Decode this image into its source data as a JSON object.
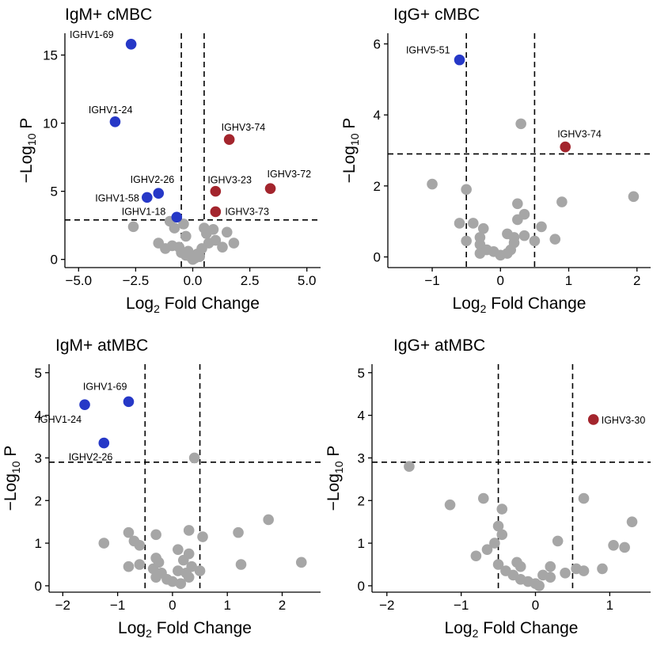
{
  "colors": {
    "up": "#a3252d",
    "down": "#2638c7",
    "ns": "#a6a6a6"
  },
  "chart_data": [
    {
      "type": "scatter",
      "title": "IgM+ cMBC",
      "xlabel": "Log2 Fold Change",
      "ylabel": "−Log10 P",
      "xlim": [
        -5.6,
        5.6
      ],
      "ylim": [
        -0.6,
        16.6
      ],
      "xticks": [
        -5,
        -2.5,
        0,
        2.5,
        5
      ],
      "xtick_labels": [
        "−5.0",
        "−2.5",
        "0.0",
        "2.5",
        "5.0"
      ],
      "yticks": [
        0,
        5,
        10,
        15
      ],
      "ytick_labels": [
        "0",
        "5",
        "10",
        "15"
      ],
      "hline": 2.9,
      "vlines": [
        -0.5,
        0.5
      ],
      "points": [
        {
          "x": -2.7,
          "y": 15.8,
          "cls": "down"
        },
        {
          "x": -3.4,
          "y": 10.1,
          "cls": "down"
        },
        {
          "x": -1.5,
          "y": 4.85,
          "cls": "down"
        },
        {
          "x": -2.0,
          "y": 4.55,
          "cls": "down"
        },
        {
          "x": -0.7,
          "y": 3.1,
          "cls": "down"
        },
        {
          "x": 1.6,
          "y": 8.8,
          "cls": "up"
        },
        {
          "x": 1.0,
          "y": 5.0,
          "cls": "up"
        },
        {
          "x": 3.4,
          "y": 5.2,
          "cls": "up"
        },
        {
          "x": 1.0,
          "y": 3.5,
          "cls": "up"
        },
        {
          "x": -2.6,
          "y": 2.4,
          "cls": "ns"
        },
        {
          "x": -1.0,
          "y": 2.8,
          "cls": "ns"
        },
        {
          "x": -0.8,
          "y": 2.3,
          "cls": "ns"
        },
        {
          "x": -0.4,
          "y": 2.6,
          "cls": "ns"
        },
        {
          "x": 0.5,
          "y": 2.3,
          "cls": "ns"
        },
        {
          "x": 0.9,
          "y": 2.2,
          "cls": "ns"
        },
        {
          "x": 1.5,
          "y": 2.0,
          "cls": "ns"
        },
        {
          "x": 0.6,
          "y": 1.9,
          "cls": "ns"
        },
        {
          "x": -0.3,
          "y": 1.7,
          "cls": "ns"
        },
        {
          "x": -1.5,
          "y": 1.2,
          "cls": "ns"
        },
        {
          "x": -1.2,
          "y": 0.8,
          "cls": "ns"
        },
        {
          "x": -0.9,
          "y": 1.0,
          "cls": "ns"
        },
        {
          "x": -0.6,
          "y": 0.9,
          "cls": "ns"
        },
        {
          "x": -0.5,
          "y": 0.5,
          "cls": "ns"
        },
        {
          "x": -0.3,
          "y": 0.3,
          "cls": "ns"
        },
        {
          "x": -0.1,
          "y": 0.2,
          "cls": "ns"
        },
        {
          "x": 0.1,
          "y": 0.1,
          "cls": "ns"
        },
        {
          "x": 0.2,
          "y": 0.4,
          "cls": "ns"
        },
        {
          "x": 0.4,
          "y": 0.8,
          "cls": "ns"
        },
        {
          "x": 0.7,
          "y": 1.2,
          "cls": "ns"
        },
        {
          "x": 1.0,
          "y": 1.4,
          "cls": "ns"
        },
        {
          "x": 1.3,
          "y": 0.9,
          "cls": "ns"
        },
        {
          "x": 1.8,
          "y": 1.2,
          "cls": "ns"
        },
        {
          "x": -0.2,
          "y": 0.6,
          "cls": "ns"
        },
        {
          "x": 0.0,
          "y": 0.0,
          "cls": "ns"
        },
        {
          "x": 0.3,
          "y": 0.2,
          "cls": "ns"
        }
      ],
      "annotations": [
        {
          "text": "IGHV1-69",
          "x": -2.7,
          "y": 15.8,
          "dx": -22,
          "dy": -8,
          "anchor": "end"
        },
        {
          "text": "IGHV1-24",
          "x": -3.4,
          "y": 10.1,
          "dx": 22,
          "dy": -11,
          "anchor": "end"
        },
        {
          "text": "IGHV2-26",
          "x": -1.5,
          "y": 4.85,
          "dx": 20,
          "dy": -13,
          "anchor": "end"
        },
        {
          "text": "IGHV1-58",
          "x": -2.0,
          "y": 4.55,
          "dx": -10,
          "dy": 5,
          "anchor": "end"
        },
        {
          "text": "IGHV1-18",
          "x": -0.7,
          "y": 3.1,
          "dx": -14,
          "dy": -3,
          "anchor": "end"
        },
        {
          "text": "IGHV3-74",
          "x": 1.6,
          "y": 8.8,
          "dx": -10,
          "dy": -11,
          "anchor": "start"
        },
        {
          "text": "IGHV3-23",
          "x": 1.0,
          "y": 5.0,
          "dx": -10,
          "dy": -10,
          "anchor": "start"
        },
        {
          "text": "IGHV3-72",
          "x": 3.4,
          "y": 5.2,
          "dx": -4,
          "dy": -14,
          "anchor": "start"
        },
        {
          "text": "IGHV3-73",
          "x": 1.0,
          "y": 3.5,
          "dx": 12,
          "dy": 4,
          "anchor": "start"
        }
      ]
    },
    {
      "type": "scatter",
      "title": "IgG+ cMBC",
      "xlabel": "Log2 Fold Change",
      "ylabel": "−Log10 P",
      "xlim": [
        -1.65,
        2.2
      ],
      "ylim": [
        -0.3,
        6.3
      ],
      "xticks": [
        -1,
        0,
        1,
        2
      ],
      "xtick_labels": [
        "−1",
        "0",
        "1",
        "2"
      ],
      "yticks": [
        0,
        2,
        4,
        6
      ],
      "ytick_labels": [
        "0",
        "2",
        "4",
        "6"
      ],
      "hline": 2.9,
      "vlines": [
        -0.5,
        0.5
      ],
      "points": [
        {
          "x": -0.6,
          "y": 5.55,
          "cls": "down"
        },
        {
          "x": 0.95,
          "y": 3.1,
          "cls": "up"
        },
        {
          "x": 0.3,
          "y": 3.75,
          "cls": "ns"
        },
        {
          "x": -1.0,
          "y": 2.05,
          "cls": "ns"
        },
        {
          "x": -0.5,
          "y": 1.9,
          "cls": "ns"
        },
        {
          "x": 1.95,
          "y": 1.7,
          "cls": "ns"
        },
        {
          "x": 0.9,
          "y": 1.55,
          "cls": "ns"
        },
        {
          "x": 0.25,
          "y": 1.5,
          "cls": "ns"
        },
        {
          "x": 0.35,
          "y": 1.2,
          "cls": "ns"
        },
        {
          "x": 0.25,
          "y": 1.05,
          "cls": "ns"
        },
        {
          "x": -0.6,
          "y": 0.95,
          "cls": "ns"
        },
        {
          "x": -0.4,
          "y": 0.95,
          "cls": "ns"
        },
        {
          "x": 0.6,
          "y": 0.85,
          "cls": "ns"
        },
        {
          "x": -0.25,
          "y": 0.8,
          "cls": "ns"
        },
        {
          "x": 0.1,
          "y": 0.65,
          "cls": "ns"
        },
        {
          "x": 0.35,
          "y": 0.6,
          "cls": "ns"
        },
        {
          "x": -0.3,
          "y": 0.55,
          "cls": "ns"
        },
        {
          "x": 0.2,
          "y": 0.55,
          "cls": "ns"
        },
        {
          "x": -0.5,
          "y": 0.45,
          "cls": "ns"
        },
        {
          "x": 0.5,
          "y": 0.45,
          "cls": "ns"
        },
        {
          "x": 0.8,
          "y": 0.5,
          "cls": "ns"
        },
        {
          "x": -0.3,
          "y": 0.35,
          "cls": "ns"
        },
        {
          "x": 0.2,
          "y": 0.4,
          "cls": "ns"
        },
        {
          "x": -0.2,
          "y": 0.2,
          "cls": "ns"
        },
        {
          "x": -0.1,
          "y": 0.15,
          "cls": "ns"
        },
        {
          "x": 0.0,
          "y": 0.05,
          "cls": "ns"
        },
        {
          "x": 0.1,
          "y": 0.1,
          "cls": "ns"
        },
        {
          "x": -0.3,
          "y": 0.1,
          "cls": "ns"
        },
        {
          "x": 0.15,
          "y": 0.2,
          "cls": "ns"
        }
      ],
      "annotations": [
        {
          "text": "IGHV5-51",
          "x": -0.6,
          "y": 5.55,
          "dx": -12,
          "dy": -8,
          "anchor": "end"
        },
        {
          "text": "IGHV3-74",
          "x": 0.95,
          "y": 3.1,
          "dx": -10,
          "dy": -12,
          "anchor": "start"
        }
      ]
    },
    {
      "type": "scatter",
      "title": "IgM+ atMBC",
      "xlabel": "Log2 Fold Change",
      "ylabel": "−Log10 P",
      "xlim": [
        -2.25,
        2.7
      ],
      "ylim": [
        -0.15,
        5.2
      ],
      "xticks": [
        -2,
        -1,
        0,
        1,
        2
      ],
      "xtick_labels": [
        "−2",
        "−1",
        "0",
        "1",
        "2"
      ],
      "yticks": [
        0,
        1,
        2,
        3,
        4,
        5
      ],
      "ytick_labels": [
        "0",
        "1",
        "2",
        "3",
        "4",
        "5"
      ],
      "hline": 2.9,
      "vlines": [
        -0.5,
        0.5
      ],
      "points": [
        {
          "x": -1.6,
          "y": 4.25,
          "cls": "down"
        },
        {
          "x": -0.8,
          "y": 4.32,
          "cls": "down"
        },
        {
          "x": -1.25,
          "y": 3.35,
          "cls": "down"
        },
        {
          "x": 0.4,
          "y": 3.0,
          "cls": "ns"
        },
        {
          "x": 1.75,
          "y": 1.55,
          "cls": "ns"
        },
        {
          "x": 0.3,
          "y": 1.3,
          "cls": "ns"
        },
        {
          "x": 1.2,
          "y": 1.25,
          "cls": "ns"
        },
        {
          "x": -0.8,
          "y": 1.25,
          "cls": "ns"
        },
        {
          "x": -0.3,
          "y": 1.2,
          "cls": "ns"
        },
        {
          "x": 0.55,
          "y": 1.15,
          "cls": "ns"
        },
        {
          "x": -0.7,
          "y": 1.05,
          "cls": "ns"
        },
        {
          "x": -0.6,
          "y": 0.95,
          "cls": "ns"
        },
        {
          "x": -1.25,
          "y": 1.0,
          "cls": "ns"
        },
        {
          "x": 0.1,
          "y": 0.85,
          "cls": "ns"
        },
        {
          "x": 0.3,
          "y": 0.75,
          "cls": "ns"
        },
        {
          "x": -0.3,
          "y": 0.65,
          "cls": "ns"
        },
        {
          "x": -0.25,
          "y": 0.55,
          "cls": "ns"
        },
        {
          "x": 0.2,
          "y": 0.6,
          "cls": "ns"
        },
        {
          "x": 2.35,
          "y": 0.55,
          "cls": "ns"
        },
        {
          "x": 1.25,
          "y": 0.5,
          "cls": "ns"
        },
        {
          "x": -0.6,
          "y": 0.5,
          "cls": "ns"
        },
        {
          "x": -0.8,
          "y": 0.45,
          "cls": "ns"
        },
        {
          "x": 0.35,
          "y": 0.45,
          "cls": "ns"
        },
        {
          "x": 0.5,
          "y": 0.35,
          "cls": "ns"
        },
        {
          "x": -0.35,
          "y": 0.4,
          "cls": "ns"
        },
        {
          "x": 0.1,
          "y": 0.35,
          "cls": "ns"
        },
        {
          "x": -0.2,
          "y": 0.3,
          "cls": "ns"
        },
        {
          "x": 0.25,
          "y": 0.3,
          "cls": "ns"
        },
        {
          "x": -0.1,
          "y": 0.15,
          "cls": "ns"
        },
        {
          "x": 0.0,
          "y": 0.1,
          "cls": "ns"
        },
        {
          "x": 0.15,
          "y": 0.05,
          "cls": "ns"
        },
        {
          "x": -0.3,
          "y": 0.2,
          "cls": "ns"
        },
        {
          "x": 0.3,
          "y": 0.2,
          "cls": "ns"
        }
      ],
      "annotations": [
        {
          "text": "IGHV1-69",
          "x": -0.8,
          "y": 4.32,
          "dx": -2,
          "dy": -15,
          "anchor": "end"
        },
        {
          "text": "IGHV1-24",
          "x": -1.6,
          "y": 4.25,
          "dx": -4,
          "dy": 23,
          "anchor": "end"
        },
        {
          "text": "IGHV2-26",
          "x": -1.25,
          "y": 3.35,
          "dx": 11,
          "dy": 22,
          "anchor": "end"
        }
      ]
    },
    {
      "type": "scatter",
      "title": "IgG+ atMBC",
      "xlabel": "Log2 Fold Change",
      "ylabel": "−Log10 P",
      "xlim": [
        -2.2,
        1.55
      ],
      "ylim": [
        -0.15,
        5.2
      ],
      "xticks": [
        -2,
        -1,
        0,
        1
      ],
      "xtick_labels": [
        "−2",
        "−1",
        "0",
        "1"
      ],
      "yticks": [
        0,
        1,
        2,
        3,
        4,
        5
      ],
      "ytick_labels": [
        "0",
        "1",
        "2",
        "3",
        "4",
        "5"
      ],
      "hline": 2.9,
      "vlines": [
        -0.5,
        0.5
      ],
      "points": [
        {
          "x": 0.78,
          "y": 3.9,
          "cls": "up"
        },
        {
          "x": -1.7,
          "y": 2.8,
          "cls": "ns"
        },
        {
          "x": -0.7,
          "y": 2.05,
          "cls": "ns"
        },
        {
          "x": 0.65,
          "y": 2.05,
          "cls": "ns"
        },
        {
          "x": -1.15,
          "y": 1.9,
          "cls": "ns"
        },
        {
          "x": -0.45,
          "y": 1.8,
          "cls": "ns"
        },
        {
          "x": 1.3,
          "y": 1.5,
          "cls": "ns"
        },
        {
          "x": -0.5,
          "y": 1.4,
          "cls": "ns"
        },
        {
          "x": -0.45,
          "y": 1.2,
          "cls": "ns"
        },
        {
          "x": 0.3,
          "y": 1.05,
          "cls": "ns"
        },
        {
          "x": -0.55,
          "y": 1.0,
          "cls": "ns"
        },
        {
          "x": 1.05,
          "y": 0.95,
          "cls": "ns"
        },
        {
          "x": 1.2,
          "y": 0.9,
          "cls": "ns"
        },
        {
          "x": -0.65,
          "y": 0.85,
          "cls": "ns"
        },
        {
          "x": -0.8,
          "y": 0.7,
          "cls": "ns"
        },
        {
          "x": -0.25,
          "y": 0.55,
          "cls": "ns"
        },
        {
          "x": -0.5,
          "y": 0.5,
          "cls": "ns"
        },
        {
          "x": -0.2,
          "y": 0.45,
          "cls": "ns"
        },
        {
          "x": 0.2,
          "y": 0.45,
          "cls": "ns"
        },
        {
          "x": 0.55,
          "y": 0.4,
          "cls": "ns"
        },
        {
          "x": 0.65,
          "y": 0.35,
          "cls": "ns"
        },
        {
          "x": 0.9,
          "y": 0.4,
          "cls": "ns"
        },
        {
          "x": -0.4,
          "y": 0.35,
          "cls": "ns"
        },
        {
          "x": -0.3,
          "y": 0.25,
          "cls": "ns"
        },
        {
          "x": 0.1,
          "y": 0.25,
          "cls": "ns"
        },
        {
          "x": 0.4,
          "y": 0.3,
          "cls": "ns"
        },
        {
          "x": 0.2,
          "y": 0.2,
          "cls": "ns"
        },
        {
          "x": -0.1,
          "y": 0.1,
          "cls": "ns"
        },
        {
          "x": 0.0,
          "y": 0.05,
          "cls": "ns"
        },
        {
          "x": 0.05,
          "y": 0.0,
          "cls": "ns"
        },
        {
          "x": -0.2,
          "y": 0.15,
          "cls": "ns"
        }
      ],
      "annotations": [
        {
          "text": "IGHV3-30",
          "x": 0.78,
          "y": 3.9,
          "dx": 10,
          "dy": 5,
          "anchor": "start"
        }
      ]
    }
  ]
}
